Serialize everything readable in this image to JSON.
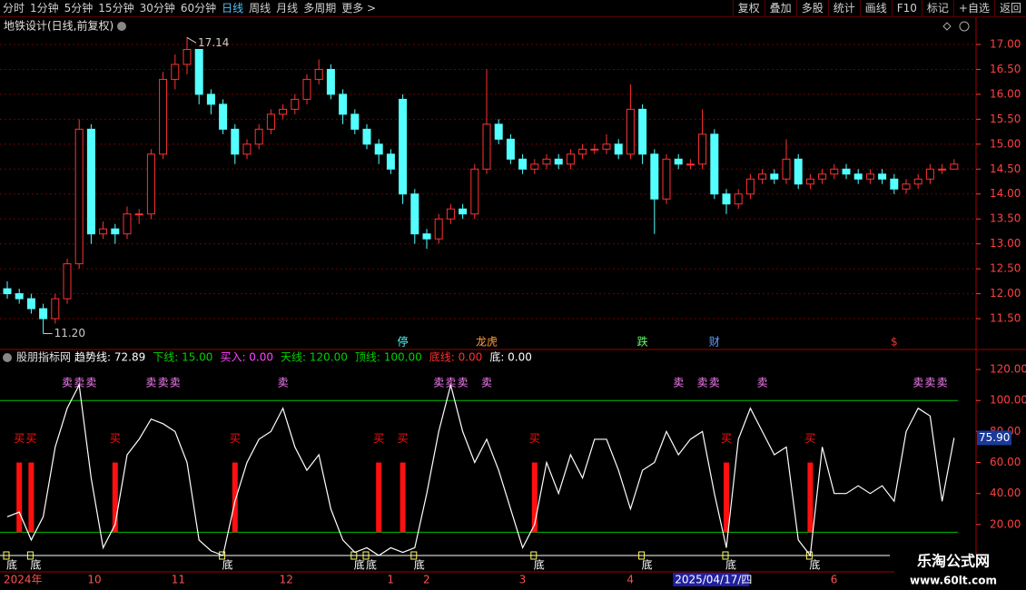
{
  "toolbar": {
    "periods": [
      "分时",
      "1分钟",
      "5分钟",
      "15分钟",
      "30分钟",
      "60分钟",
      "日线",
      "周线",
      "月线",
      "多周期",
      "更多 >"
    ],
    "actions": [
      "复权",
      "叠加",
      "多股",
      "统计",
      "画线",
      "F10",
      "标记",
      "+自选",
      "返回"
    ]
  },
  "indicator_header": {
    "title": "股朋指标网",
    "items": [
      {
        "text": "趋势线: 72.89",
        "color": "#ffffff"
      },
      {
        "text": "下线: 15.00",
        "color": "#00d000"
      },
      {
        "text": "买入: 0.00",
        "color": "#ff44ff"
      },
      {
        "text": "天线: 120.00",
        "color": "#00d000"
      },
      {
        "text": "顶线: 100.00",
        "color": "#00d000"
      },
      {
        "text": "底线: 0.00",
        "color": "#ff3030"
      },
      {
        "text": "底: 0.00",
        "color": "#ffffff"
      }
    ]
  },
  "watermark": {
    "name": "乐淘公式网",
    "url": "www.60lt.com"
  },
  "chart_data": [
    {
      "type": "candlestick",
      "title": "地铁设计(日线,前复权)",
      "categories": [
        "2024年",
        null,
        null,
        null,
        null,
        null,
        null,
        "10",
        null,
        null,
        null,
        null,
        null,
        null,
        "11",
        null,
        null,
        null,
        null,
        null,
        null,
        null,
        null,
        "12",
        null,
        null,
        null,
        null,
        null,
        null,
        null,
        null,
        "1",
        null,
        null,
        "2",
        null,
        null,
        null,
        null,
        null,
        null,
        null,
        "3",
        null,
        null,
        null,
        null,
        null,
        null,
        null,
        null,
        "4",
        null,
        null,
        null,
        "2025/04/17/四",
        null,
        null,
        null,
        null,
        null,
        null,
        null,
        null,
        null,
        null,
        null,
        null,
        "6",
        null,
        null,
        null,
        null,
        null,
        null,
        null,
        null,
        null,
        null
      ],
      "open": [
        12.1,
        12.0,
        11.9,
        11.7,
        11.5,
        11.9,
        12.6,
        15.3,
        13.2,
        13.3,
        13.2,
        13.6,
        13.6,
        14.8,
        16.3,
        16.6,
        16.9,
        16.0,
        15.8,
        15.3,
        14.8,
        15.0,
        15.3,
        15.6,
        15.7,
        15.9,
        16.3,
        16.5,
        16.0,
        15.6,
        15.3,
        15.0,
        14.8,
        15.9,
        14.0,
        13.2,
        13.1,
        13.5,
        13.7,
        13.6,
        14.5,
        15.4,
        15.1,
        14.7,
        14.5,
        14.6,
        14.7,
        14.6,
        14.8,
        14.9,
        14.9,
        15.0,
        14.8,
        15.7,
        14.8,
        13.9,
        14.7,
        14.6,
        14.6,
        15.2,
        14.0,
        13.8,
        14.0,
        14.3,
        14.4,
        14.3,
        14.7,
        14.2,
        14.3,
        14.4,
        14.5,
        14.4,
        14.3,
        14.4,
        14.3,
        14.1,
        14.2,
        14.3,
        14.5,
        14.5
      ],
      "high": [
        12.25,
        12.1,
        12.0,
        11.8,
        12.0,
        12.7,
        15.5,
        15.4,
        13.45,
        13.4,
        13.75,
        13.7,
        14.9,
        16.45,
        16.8,
        17.14,
        16.9,
        16.1,
        15.9,
        15.4,
        15.1,
        15.4,
        15.7,
        15.8,
        16.0,
        16.4,
        16.7,
        16.6,
        16.1,
        15.7,
        15.4,
        15.1,
        14.9,
        16.0,
        14.1,
        13.3,
        13.6,
        13.8,
        13.8,
        14.6,
        16.5,
        15.5,
        15.2,
        14.8,
        14.7,
        14.8,
        14.8,
        14.9,
        15.0,
        15.0,
        15.2,
        15.1,
        16.2,
        15.8,
        14.9,
        14.8,
        14.8,
        14.7,
        15.7,
        15.3,
        14.1,
        14.1,
        14.4,
        14.5,
        14.5,
        15.1,
        14.8,
        14.4,
        14.5,
        14.6,
        14.6,
        14.5,
        14.5,
        14.5,
        14.4,
        14.3,
        14.4,
        14.6,
        14.6,
        14.7
      ],
      "low": [
        11.9,
        11.8,
        11.6,
        11.2,
        11.4,
        11.8,
        12.5,
        13.0,
        13.1,
        13.0,
        13.1,
        13.4,
        13.5,
        14.7,
        16.1,
        16.4,
        15.8,
        15.6,
        15.2,
        14.6,
        14.7,
        14.9,
        15.2,
        15.5,
        15.6,
        15.8,
        16.2,
        15.9,
        15.4,
        15.2,
        14.9,
        14.6,
        14.4,
        13.8,
        13.0,
        12.9,
        13.0,
        13.4,
        13.5,
        13.5,
        14.4,
        15.0,
        14.6,
        14.4,
        14.4,
        14.5,
        14.5,
        14.5,
        14.7,
        14.8,
        14.8,
        14.7,
        14.7,
        14.6,
        13.2,
        13.8,
        14.5,
        14.5,
        14.5,
        13.9,
        13.6,
        13.7,
        13.9,
        14.2,
        14.2,
        14.2,
        14.1,
        14.1,
        14.2,
        14.3,
        14.3,
        14.2,
        14.2,
        14.2,
        14.0,
        14.0,
        14.1,
        14.2,
        14.4,
        14.5
      ],
      "close": [
        12.0,
        11.9,
        11.7,
        11.5,
        11.9,
        12.6,
        15.3,
        13.2,
        13.3,
        13.2,
        13.6,
        13.6,
        14.8,
        16.3,
        16.6,
        16.9,
        16.0,
        15.8,
        15.3,
        14.8,
        15.0,
        15.3,
        15.6,
        15.7,
        15.9,
        16.3,
        16.5,
        16.0,
        15.6,
        15.3,
        15.0,
        14.8,
        14.5,
        14.0,
        13.2,
        13.1,
        13.5,
        13.7,
        13.6,
        14.5,
        15.4,
        15.1,
        14.7,
        14.5,
        14.6,
        14.7,
        14.6,
        14.8,
        14.9,
        14.9,
        15.0,
        14.8,
        15.7,
        14.8,
        13.9,
        14.7,
        14.6,
        14.6,
        15.2,
        14.0,
        13.8,
        14.0,
        14.3,
        14.4,
        14.3,
        14.7,
        14.2,
        14.3,
        14.4,
        14.5,
        14.4,
        14.3,
        14.4,
        14.3,
        14.1,
        14.2,
        14.3,
        14.5,
        14.5,
        14.6
      ],
      "up_color": "#ff3232",
      "down_color": "#54ffff",
      "annotations": [
        {
          "value": 17.14,
          "label": "17.14"
        },
        {
          "value": 11.2,
          "label": "11.20"
        }
      ],
      "events": [
        null,
        null,
        null,
        null,
        null,
        null,
        null,
        null,
        null,
        null,
        null,
        null,
        null,
        null,
        null,
        null,
        null,
        null,
        null,
        null,
        null,
        null,
        null,
        null,
        null,
        null,
        null,
        null,
        null,
        null,
        null,
        null,
        null,
        "停",
        null,
        null,
        null,
        null,
        null,
        null,
        "龙虎",
        null,
        null,
        null,
        null,
        null,
        null,
        null,
        null,
        null,
        null,
        null,
        null,
        "跌",
        null,
        null,
        null,
        null,
        null,
        "财",
        null,
        null,
        null,
        null,
        null,
        null,
        null,
        null,
        null,
        null,
        null,
        null,
        null,
        null,
        "$",
        null,
        null,
        null,
        null,
        null
      ],
      "ylim": [
        10.9,
        17.2
      ],
      "yticks": [
        {
          "value": 11.5,
          "label": "11.50"
        },
        {
          "value": 12,
          "label": "12.00"
        },
        {
          "value": 12.5,
          "label": "12.50"
        },
        {
          "value": 13,
          "label": "13.00"
        },
        {
          "value": 13.5,
          "label": "13.50"
        },
        {
          "value": 14,
          "label": "14.00"
        },
        {
          "value": 14.5,
          "label": "14.50"
        },
        {
          "value": 15,
          "label": "15.00"
        },
        {
          "value": 15.5,
          "label": "15.50"
        },
        {
          "value": 16,
          "label": "16.00"
        },
        {
          "value": 16.5,
          "label": "16.50"
        },
        {
          "value": 17,
          "label": "17.00"
        }
      ],
      "grid": true
    },
    {
      "type": "line",
      "series": [
        {
          "name": "趋势线",
          "color": "#ffffff",
          "values": [
            25,
            28,
            10,
            25,
            70,
            95,
            110,
            50,
            5,
            20,
            65,
            75,
            88,
            85,
            80,
            60,
            10,
            3,
            0,
            35,
            60,
            75,
            80,
            95,
            70,
            55,
            65,
            30,
            10,
            2,
            5,
            0,
            5,
            2,
            5,
            40,
            80,
            110,
            80,
            60,
            75,
            55,
            30,
            5,
            20,
            60,
            40,
            65,
            50,
            75,
            75,
            55,
            30,
            55,
            60,
            80,
            65,
            75,
            80,
            40,
            5,
            75,
            95,
            80,
            65,
            70,
            10,
            0,
            70,
            40,
            40,
            45,
            40,
            45,
            35,
            80,
            95,
            90,
            35,
            75.9
          ]
        }
      ],
      "current_label": "75.90",
      "hlines": [
        {
          "value": 100,
          "color": "#00c000"
        },
        {
          "value": 15,
          "color": "#00c000"
        }
      ],
      "buy": {
        "color": "#ff1010",
        "base": 15,
        "values": [
          null,
          60,
          60,
          null,
          null,
          null,
          null,
          null,
          null,
          60,
          null,
          null,
          null,
          null,
          null,
          null,
          null,
          null,
          null,
          60,
          null,
          null,
          null,
          null,
          null,
          null,
          null,
          null,
          null,
          null,
          null,
          60,
          null,
          60,
          null,
          null,
          null,
          null,
          null,
          null,
          null,
          null,
          null,
          null,
          60,
          null,
          null,
          null,
          null,
          null,
          null,
          null,
          null,
          null,
          null,
          null,
          null,
          null,
          null,
          null,
          60,
          null,
          null,
          null,
          null,
          null,
          null,
          60,
          null,
          null,
          null,
          null,
          null,
          null,
          null,
          null,
          null,
          null,
          null,
          null
        ],
        "labels": [
          null,
          "买",
          "买",
          null,
          null,
          null,
          null,
          null,
          null,
          "买",
          null,
          null,
          null,
          null,
          null,
          null,
          null,
          null,
          null,
          "买",
          null,
          null,
          null,
          null,
          null,
          null,
          null,
          null,
          null,
          null,
          null,
          "买",
          null,
          "买",
          null,
          null,
          null,
          null,
          null,
          null,
          null,
          null,
          null,
          null,
          "买",
          null,
          null,
          null,
          null,
          null,
          null,
          null,
          null,
          null,
          null,
          null,
          null,
          null,
          null,
          null,
          "买",
          null,
          null,
          null,
          null,
          null,
          null,
          "买",
          null,
          null,
          null,
          null,
          null,
          null,
          null,
          null,
          null,
          null,
          null,
          null
        ]
      },
      "sell": [
        null,
        null,
        null,
        null,
        null,
        "卖",
        "卖",
        "卖",
        null,
        null,
        null,
        null,
        "卖",
        "卖",
        "卖",
        null,
        null,
        null,
        null,
        null,
        null,
        null,
        null,
        "卖",
        null,
        null,
        null,
        null,
        null,
        null,
        null,
        null,
        null,
        null,
        null,
        null,
        "卖",
        "卖",
        "卖",
        null,
        "卖",
        null,
        null,
        null,
        null,
        null,
        null,
        null,
        null,
        null,
        null,
        null,
        null,
        null,
        null,
        null,
        "卖",
        null,
        "卖",
        "卖",
        null,
        null,
        null,
        "卖",
        null,
        null,
        null,
        null,
        null,
        null,
        null,
        null,
        null,
        null,
        null,
        null,
        "卖",
        "卖",
        "卖",
        null
      ],
      "bottom": [
        "底",
        null,
        "底",
        null,
        null,
        null,
        null,
        null,
        null,
        null,
        null,
        null,
        null,
        null,
        null,
        null,
        null,
        null,
        "底",
        null,
        null,
        null,
        null,
        null,
        null,
        null,
        null,
        null,
        null,
        "底",
        "底",
        null,
        null,
        null,
        "底",
        null,
        null,
        null,
        null,
        null,
        null,
        null,
        null,
        null,
        "底",
        null,
        null,
        null,
        null,
        null,
        null,
        null,
        null,
        "底",
        null,
        null,
        null,
        null,
        null,
        null,
        "底",
        null,
        null,
        null,
        null,
        null,
        null,
        "底",
        null,
        null,
        null,
        null,
        null,
        null,
        null,
        null,
        null,
        null,
        null,
        null
      ],
      "ylim": [
        0,
        130
      ],
      "yticks": [
        {
          "value": 20,
          "label": "20.00"
        },
        {
          "value": 40,
          "label": "40.00"
        },
        {
          "value": 60,
          "label": "60.00"
        },
        {
          "value": 80,
          "label": "80.00"
        },
        {
          "value": 100,
          "label": "100.00"
        },
        {
          "value": 120,
          "label": "120.00"
        }
      ]
    }
  ]
}
